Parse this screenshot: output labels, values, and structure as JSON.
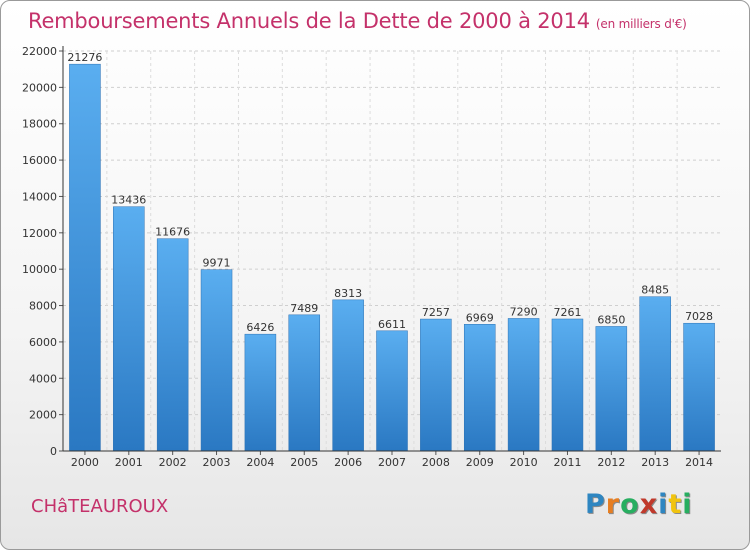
{
  "header": {
    "title": "Remboursements Annuels de la Dette de 2000 à 2014",
    "unit": "(en milliers d'€)"
  },
  "footer": {
    "city": "CHâTEAUROUX",
    "brand": "Proxiti",
    "brand_letters": [
      "P",
      "r",
      "o",
      "x",
      "i",
      "t",
      "i"
    ],
    "brand_colors": [
      "#2e86c1",
      "#e67e22",
      "#27ae60",
      "#c0392b",
      "#2e86c1",
      "#f1c40f",
      "#27ae60"
    ]
  },
  "chart_data": {
    "type": "bar",
    "categories": [
      "2000",
      "2001",
      "2002",
      "2003",
      "2004",
      "2005",
      "2006",
      "2007",
      "2008",
      "2009",
      "2010",
      "2011",
      "2012",
      "2013",
      "2014"
    ],
    "values": [
      21276,
      13436,
      11676,
      9971,
      6426,
      7489,
      8313,
      6611,
      7257,
      6969,
      7290,
      7261,
      6850,
      8485,
      7028
    ],
    "ylim": [
      0,
      22000
    ],
    "yticks": [
      0,
      2000,
      4000,
      6000,
      8000,
      10000,
      12000,
      14000,
      16000,
      18000,
      20000,
      22000
    ],
    "grid": true,
    "bar_color": "#3a8fd8",
    "title": "Remboursements Annuels de la Dette de 2000 à 2014",
    "ylabel": "",
    "xlabel": ""
  }
}
